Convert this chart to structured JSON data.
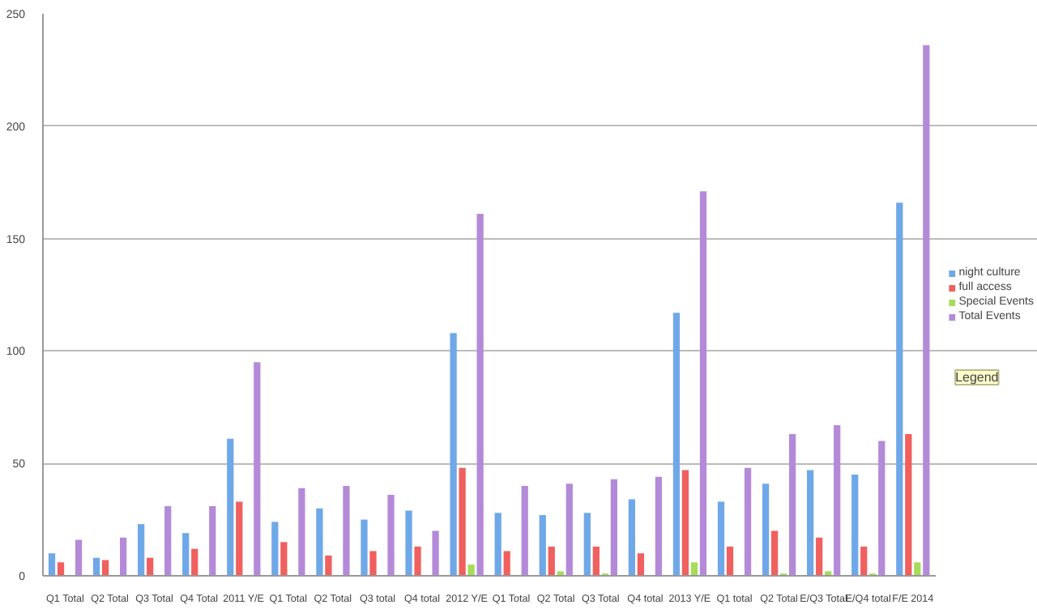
{
  "chart_data": {
    "type": "bar",
    "categories": [
      "Q1 Total",
      "Q2 Total",
      "Q3 Total",
      "Q4 Total",
      "2011 Y/E",
      "Q1 Total",
      "Q2 Total",
      "Q3 total",
      "Q4 total",
      "2012 Y/E",
      "Q1 Total",
      "Q2 Total",
      "Q3 Total",
      "Q4 total",
      "2013 Y/E",
      "Q1 total",
      "Q2 Total",
      "E/Q3 Total",
      "E/Q4 total",
      "F/E 2014"
    ],
    "series": [
      {
        "name": "night culture",
        "color": "#6fa8e8",
        "values": [
          10,
          8,
          23,
          19,
          61,
          24,
          30,
          25,
          29,
          108,
          28,
          27,
          28,
          34,
          117,
          33,
          41,
          47,
          45,
          166
        ]
      },
      {
        "name": "full access",
        "color": "#f0605e",
        "values": [
          6,
          7,
          8,
          12,
          33,
          15,
          9,
          11,
          13,
          48,
          11,
          13,
          13,
          10,
          47,
          13,
          20,
          17,
          13,
          63
        ]
      },
      {
        "name": "Special Events",
        "color": "#a5dc5a",
        "values": [
          0,
          0,
          0,
          0,
          0,
          0,
          0,
          0,
          0,
          5,
          0,
          2,
          1,
          0,
          6,
          0,
          1,
          2,
          1,
          6
        ]
      },
      {
        "name": "Total Events",
        "color": "#b48ad8",
        "values": [
          16,
          17,
          31,
          31,
          95,
          39,
          40,
          36,
          20,
          161,
          40,
          41,
          43,
          44,
          171,
          48,
          63,
          67,
          60,
          236
        ]
      }
    ],
    "ylim": [
      0,
      250
    ],
    "yticks": [
      0,
      50,
      100,
      150,
      200,
      250
    ],
    "grid": "y",
    "legend": "right",
    "annotations": [
      "Legend"
    ]
  }
}
